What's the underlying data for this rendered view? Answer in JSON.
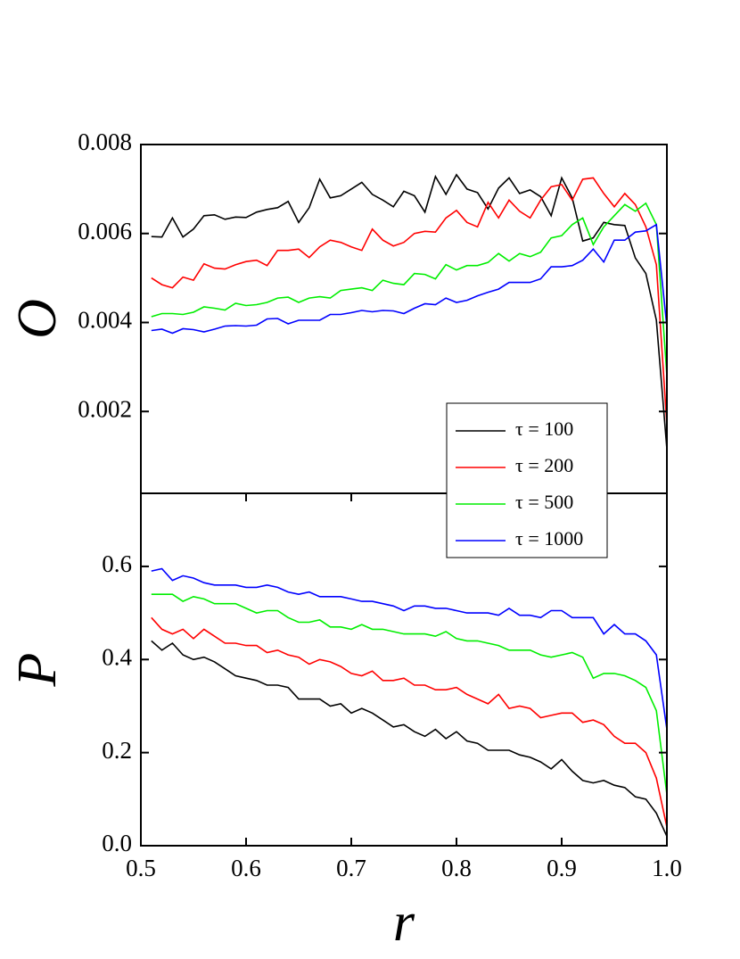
{
  "chart_data": [
    {
      "type": "line",
      "ylabel": "O",
      "legend": "lower right",
      "xlim": [
        0.5,
        1.0
      ],
      "ylim": [
        0.00016,
        0.008
      ],
      "yticks": [
        0.002,
        0.004,
        0.006,
        0.008
      ],
      "x": [
        0.51,
        0.52,
        0.53,
        0.54,
        0.55,
        0.56,
        0.57,
        0.58,
        0.59,
        0.6,
        0.61,
        0.62,
        0.63,
        0.64,
        0.65,
        0.66,
        0.67,
        0.68,
        0.69,
        0.7,
        0.71,
        0.72,
        0.73,
        0.74,
        0.75,
        0.76,
        0.77,
        0.78,
        0.79,
        0.8,
        0.81,
        0.82,
        0.83,
        0.84,
        0.85,
        0.86,
        0.87,
        0.88,
        0.89,
        0.9,
        0.91,
        0.92,
        0.93,
        0.94,
        0.95,
        0.96,
        0.97,
        0.98,
        0.99,
        1.0
      ],
      "series": [
        {
          "name": "τ = 100",
          "color": "#000000",
          "values": [
            0.00593,
            0.00592,
            0.00635,
            0.00592,
            0.0061,
            0.0064,
            0.00642,
            0.00632,
            0.00637,
            0.00636,
            0.00648,
            0.00654,
            0.00658,
            0.00672,
            0.00625,
            0.00658,
            0.00722,
            0.0068,
            0.00685,
            0.007,
            0.00715,
            0.00688,
            0.00675,
            0.0066,
            0.00695,
            0.00685,
            0.00648,
            0.00728,
            0.00688,
            0.00732,
            0.007,
            0.00692,
            0.00655,
            0.00702,
            0.00725,
            0.0069,
            0.00698,
            0.00683,
            0.0064,
            0.00725,
            0.0068,
            0.00583,
            0.0059,
            0.00625,
            0.0062,
            0.00618,
            0.00545,
            0.0051,
            0.00405,
            0.00115
          ]
        },
        {
          "name": "τ = 200",
          "color": "#ff0000",
          "values": [
            0.005,
            0.00485,
            0.00478,
            0.00502,
            0.00495,
            0.00532,
            0.00522,
            0.0052,
            0.0053,
            0.00537,
            0.0054,
            0.00528,
            0.00562,
            0.00562,
            0.00565,
            0.00546,
            0.0057,
            0.00585,
            0.0058,
            0.0057,
            0.00562,
            0.0061,
            0.00585,
            0.00572,
            0.0058,
            0.006,
            0.00605,
            0.00603,
            0.00635,
            0.00652,
            0.00625,
            0.00615,
            0.0067,
            0.00635,
            0.00675,
            0.0065,
            0.00635,
            0.00675,
            0.00705,
            0.0071,
            0.00675,
            0.00722,
            0.00725,
            0.0069,
            0.0066,
            0.0069,
            0.00665,
            0.00615,
            0.0053,
            0.0017
          ]
        },
        {
          "name": "τ = 500",
          "color": "#00ee00",
          "values": [
            0.00413,
            0.0042,
            0.0042,
            0.00418,
            0.00423,
            0.00435,
            0.00432,
            0.00428,
            0.00443,
            0.00438,
            0.0044,
            0.00445,
            0.00455,
            0.00457,
            0.00445,
            0.00455,
            0.00458,
            0.00455,
            0.00472,
            0.00475,
            0.00478,
            0.00472,
            0.00495,
            0.00488,
            0.00485,
            0.0051,
            0.00508,
            0.00498,
            0.0053,
            0.00518,
            0.00528,
            0.00528,
            0.00535,
            0.00555,
            0.00538,
            0.00555,
            0.00548,
            0.00558,
            0.0059,
            0.00595,
            0.0062,
            0.00635,
            0.00575,
            0.00615,
            0.0064,
            0.00665,
            0.0065,
            0.00668,
            0.0062,
            0.0028
          ]
        },
        {
          "name": "τ = 1000",
          "color": "#0000ff",
          "values": [
            0.00382,
            0.00385,
            0.00376,
            0.00386,
            0.00384,
            0.00379,
            0.00385,
            0.00392,
            0.00393,
            0.00392,
            0.00394,
            0.00408,
            0.00409,
            0.00397,
            0.00405,
            0.00405,
            0.00405,
            0.00418,
            0.00418,
            0.00422,
            0.00427,
            0.00424,
            0.00427,
            0.00426,
            0.0042,
            0.00432,
            0.00442,
            0.0044,
            0.00455,
            0.00445,
            0.0045,
            0.0046,
            0.00468,
            0.00475,
            0.0049,
            0.0049,
            0.0049,
            0.00498,
            0.00525,
            0.00525,
            0.00528,
            0.0054,
            0.00565,
            0.00536,
            0.00585,
            0.00585,
            0.00603,
            0.00606,
            0.0062,
            0.0039
          ]
        }
      ]
    },
    {
      "type": "line",
      "ylabel": "P",
      "xlabel": "r",
      "xlim": [
        0.5,
        1.0
      ],
      "ylim": [
        0,
        0.757
      ],
      "xticks": [
        0.5,
        0.6,
        0.7,
        0.8,
        0.9,
        {
          "value": 1.0,
          "label": "1.0"
        }
      ],
      "yticks": [
        {
          "value": 0,
          "label": "0.0"
        },
        0.2,
        0.4,
        0.6
      ],
      "x": [
        0.51,
        0.52,
        0.53,
        0.54,
        0.55,
        0.56,
        0.57,
        0.58,
        0.59,
        0.6,
        0.61,
        0.62,
        0.63,
        0.64,
        0.65,
        0.66,
        0.67,
        0.68,
        0.69,
        0.7,
        0.71,
        0.72,
        0.73,
        0.74,
        0.75,
        0.76,
        0.77,
        0.78,
        0.79,
        0.8,
        0.81,
        0.82,
        0.83,
        0.84,
        0.85,
        0.86,
        0.87,
        0.88,
        0.89,
        0.9,
        0.91,
        0.92,
        0.93,
        0.94,
        0.95,
        0.96,
        0.97,
        0.98,
        0.99,
        1.0
      ],
      "series": [
        {
          "color": "#000000",
          "values": [
            0.44,
            0.42,
            0.435,
            0.41,
            0.4,
            0.405,
            0.395,
            0.38,
            0.365,
            0.36,
            0.355,
            0.345,
            0.345,
            0.34,
            0.315,
            0.315,
            0.315,
            0.3,
            0.305,
            0.285,
            0.295,
            0.285,
            0.27,
            0.255,
            0.26,
            0.245,
            0.235,
            0.25,
            0.23,
            0.245,
            0.225,
            0.22,
            0.205,
            0.205,
            0.205,
            0.195,
            0.19,
            0.18,
            0.165,
            0.185,
            0.16,
            0.14,
            0.135,
            0.14,
            0.13,
            0.125,
            0.105,
            0.1,
            0.07,
            0.02
          ]
        },
        {
          "color": "#ff0000",
          "values": [
            0.49,
            0.465,
            0.455,
            0.465,
            0.445,
            0.465,
            0.45,
            0.435,
            0.435,
            0.43,
            0.43,
            0.415,
            0.42,
            0.41,
            0.405,
            0.39,
            0.4,
            0.395,
            0.385,
            0.37,
            0.365,
            0.375,
            0.355,
            0.355,
            0.36,
            0.345,
            0.345,
            0.335,
            0.335,
            0.34,
            0.325,
            0.315,
            0.305,
            0.325,
            0.295,
            0.3,
            0.295,
            0.275,
            0.28,
            0.285,
            0.285,
            0.265,
            0.27,
            0.26,
            0.235,
            0.22,
            0.22,
            0.2,
            0.145,
            0.04
          ]
        },
        {
          "color": "#00ee00",
          "values": [
            0.54,
            0.54,
            0.54,
            0.525,
            0.535,
            0.53,
            0.52,
            0.52,
            0.52,
            0.51,
            0.5,
            0.505,
            0.505,
            0.49,
            0.48,
            0.48,
            0.485,
            0.47,
            0.47,
            0.465,
            0.475,
            0.465,
            0.465,
            0.46,
            0.455,
            0.455,
            0.455,
            0.45,
            0.46,
            0.445,
            0.44,
            0.44,
            0.435,
            0.43,
            0.42,
            0.42,
            0.42,
            0.41,
            0.405,
            0.41,
            0.415,
            0.405,
            0.36,
            0.37,
            0.37,
            0.365,
            0.355,
            0.34,
            0.29,
            0.11
          ]
        },
        {
          "color": "#0000ff",
          "values": [
            0.59,
            0.595,
            0.57,
            0.58,
            0.575,
            0.565,
            0.56,
            0.56,
            0.56,
            0.555,
            0.555,
            0.56,
            0.555,
            0.545,
            0.54,
            0.545,
            0.535,
            0.535,
            0.535,
            0.53,
            0.525,
            0.525,
            0.52,
            0.515,
            0.505,
            0.515,
            0.515,
            0.51,
            0.51,
            0.505,
            0.5,
            0.5,
            0.5,
            0.495,
            0.51,
            0.495,
            0.495,
            0.49,
            0.505,
            0.505,
            0.49,
            0.49,
            0.49,
            0.455,
            0.475,
            0.455,
            0.455,
            0.44,
            0.41,
            0.25
          ]
        }
      ]
    }
  ]
}
